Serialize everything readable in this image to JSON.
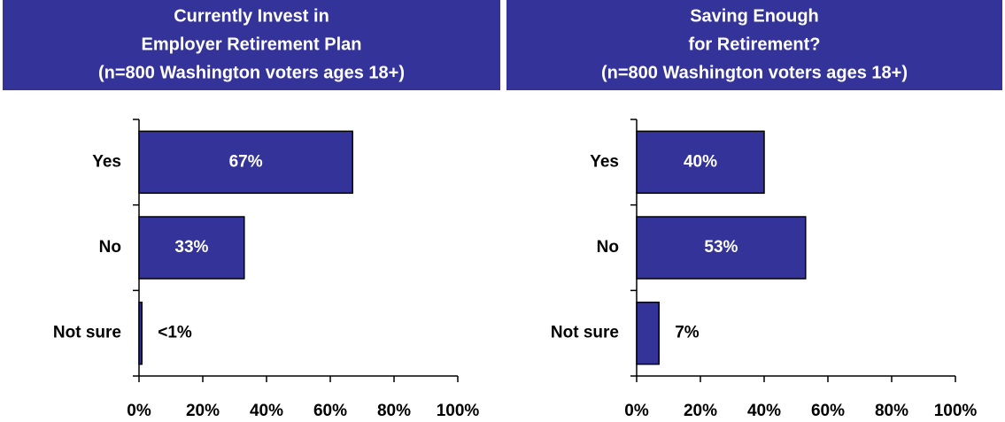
{
  "chart_data": [
    {
      "type": "bar",
      "orientation": "horizontal",
      "title": [
        "Currently Invest in",
        "Employer Retirement Plan",
        "(n=800 Washington voters ages 18+)"
      ],
      "categories": [
        "Yes",
        "No",
        "Not sure"
      ],
      "values": [
        67,
        33,
        0.9
      ],
      "value_labels": [
        "67%",
        "33%",
        "<1%"
      ],
      "color": "#333399",
      "xlim": [
        0,
        100
      ],
      "xticks": [
        {
          "value": 0,
          "label": "0%"
        },
        {
          "value": 20,
          "label": "20%"
        },
        {
          "value": 40,
          "label": "40%"
        },
        {
          "value": 60,
          "label": "60%"
        },
        {
          "value": 80,
          "label": "80%"
        },
        {
          "value": 100,
          "label": "100%"
        }
      ]
    },
    {
      "type": "bar",
      "orientation": "horizontal",
      "title": [
        "Saving Enough",
        "for Retirement?",
        "(n=800 Washington voters ages 18+)"
      ],
      "categories": [
        "Yes",
        "No",
        "Not sure"
      ],
      "values": [
        40,
        53,
        7
      ],
      "value_labels": [
        "40%",
        "53%",
        "7%"
      ],
      "color": "#333399",
      "xlim": [
        0,
        100
      ],
      "xticks": [
        {
          "value": 0,
          "label": "0%"
        },
        {
          "value": 20,
          "label": "20%"
        },
        {
          "value": 40,
          "label": "40%"
        },
        {
          "value": 60,
          "label": "60%"
        },
        {
          "value": 80,
          "label": "80%"
        },
        {
          "value": 100,
          "label": "100%"
        }
      ]
    }
  ]
}
